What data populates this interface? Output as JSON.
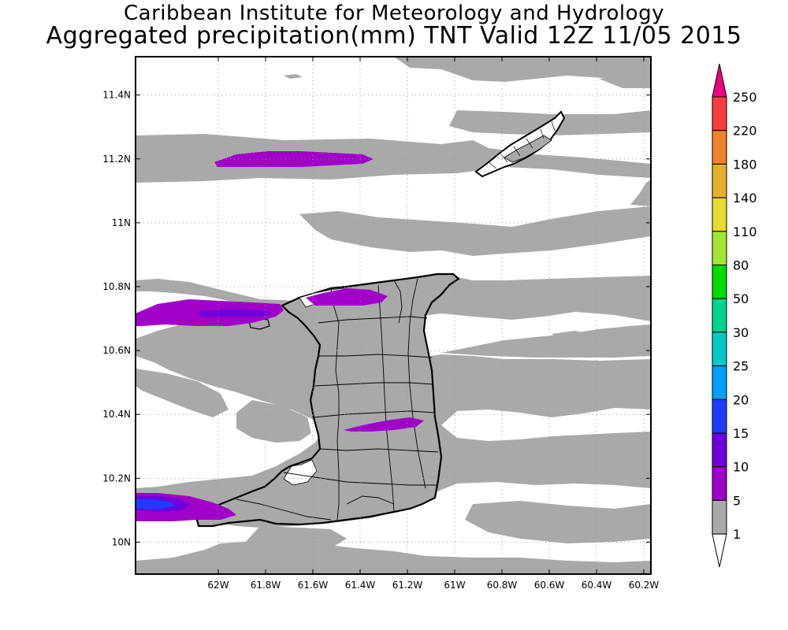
{
  "title": {
    "line1": "Caribbean Institute for Meteorology and Hydrology",
    "line2": "Aggregated precipitation(mm) TNT Valid 12Z 11/05 2015"
  },
  "map": {
    "lon_range": [
      -62.35,
      -60.17
    ],
    "lat_range": [
      9.9,
      11.52
    ],
    "lon_ticks": [
      {
        "value": -62.0,
        "label": "62W"
      },
      {
        "value": -61.8,
        "label": "61.8W"
      },
      {
        "value": -61.6,
        "label": "61.6W"
      },
      {
        "value": -61.4,
        "label": "61.4W"
      },
      {
        "value": -61.2,
        "label": "61.2W"
      },
      {
        "value": -61.0,
        "label": "61W"
      },
      {
        "value": -60.8,
        "label": "60.8W"
      },
      {
        "value": -60.6,
        "label": "60.6W"
      },
      {
        "value": -60.4,
        "label": "60.4W"
      },
      {
        "value": -60.2,
        "label": "60.2W"
      }
    ],
    "lat_ticks": [
      {
        "value": 10.0,
        "label": "10N"
      },
      {
        "value": 10.2,
        "label": "10.2N"
      },
      {
        "value": 10.4,
        "label": "10.4N"
      },
      {
        "value": 10.6,
        "label": "10.6N"
      },
      {
        "value": 10.8,
        "label": "10.8N"
      },
      {
        "value": 11.0,
        "label": "11N"
      },
      {
        "value": 11.2,
        "label": "11.2N"
      },
      {
        "value": 11.4,
        "label": "11.4N"
      }
    ],
    "grid": true
  },
  "colorbar": {
    "levels": [
      "1",
      "5",
      "10",
      "15",
      "20",
      "25",
      "30",
      "50",
      "80",
      "110",
      "140",
      "180",
      "220",
      "250"
    ],
    "colors": [
      "#a9a9a9",
      "#a000c8",
      "#6e00dc",
      "#1e3cff",
      "#00a0ff",
      "#00c8c8",
      "#00d28c",
      "#00dc00",
      "#a0e632",
      "#e6dc32",
      "#e6af2d",
      "#f08228",
      "#fa3c3c",
      "#f00082"
    ],
    "under_color": "#ffffff",
    "over_color": "#f00082"
  }
}
